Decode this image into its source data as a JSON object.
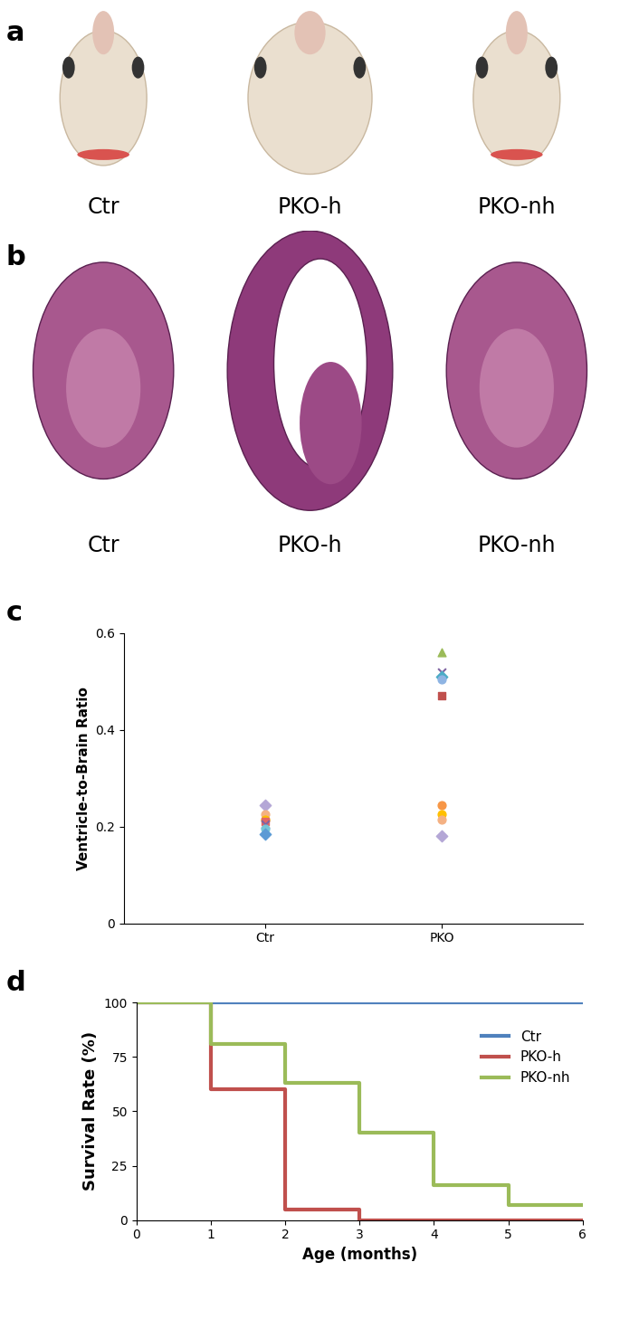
{
  "image_panels": [
    {
      "panel": "a",
      "type": "image",
      "captions": [
        "Ctr",
        "PKO-h",
        "PKO-nh"
      ]
    },
    {
      "panel": "b",
      "type": "image",
      "captions": [
        "Ctr",
        "PKO-h",
        "PKO-nh"
      ]
    }
  ],
  "chart_data": [
    {
      "panel": "c",
      "type": "scatter",
      "categories": [
        "Ctr",
        "PKO"
      ],
      "y_label": "Ventricle-to-Brain Ratio",
      "ylim": [
        0,
        0.6
      ],
      "yticks": [
        0,
        0.2,
        0.4,
        0.6
      ],
      "points": [
        {
          "category": "Ctr",
          "value": 0.245,
          "color": "#b4a7d6",
          "marker": "diamond"
        },
        {
          "category": "Ctr",
          "value": 0.225,
          "color": "#f4b183",
          "marker": "circle"
        },
        {
          "category": "Ctr",
          "value": 0.215,
          "color": "#ffc000",
          "marker": "circle"
        },
        {
          "category": "Ctr",
          "value": 0.21,
          "color": "#e06666",
          "marker": "square"
        },
        {
          "category": "Ctr",
          "value": 0.205,
          "color": "#8064a2",
          "marker": "x"
        },
        {
          "category": "Ctr",
          "value": 0.195,
          "color": "#76c5d6",
          "marker": "circle"
        },
        {
          "category": "Ctr",
          "value": 0.185,
          "color": "#5b9bd5",
          "marker": "diamond"
        },
        {
          "category": "PKO",
          "value": 0.56,
          "color": "#9bbb59",
          "marker": "triangle"
        },
        {
          "category": "PKO",
          "value": 0.52,
          "color": "#8064a2",
          "marker": "x"
        },
        {
          "category": "PKO",
          "value": 0.51,
          "color": "#4bacc6",
          "marker": "diamond"
        },
        {
          "category": "PKO",
          "value": 0.505,
          "color": "#8eb4e3",
          "marker": "circle"
        },
        {
          "category": "PKO",
          "value": 0.47,
          "color": "#c0504d",
          "marker": "square"
        },
        {
          "category": "PKO",
          "value": 0.245,
          "color": "#f79646",
          "marker": "circle"
        },
        {
          "category": "PKO",
          "value": 0.225,
          "color": "#ffc000",
          "marker": "circle"
        },
        {
          "category": "PKO",
          "value": 0.215,
          "color": "#f4b183",
          "marker": "circle"
        },
        {
          "category": "PKO",
          "value": 0.18,
          "color": "#b4a7d6",
          "marker": "diamond"
        }
      ]
    },
    {
      "panel": "d",
      "type": "line",
      "line_style": "steps",
      "x_label": "Age (months)",
      "y_label": "Survival Rate (%)",
      "x": [
        0,
        1,
        2,
        3,
        4,
        5,
        6
      ],
      "xlim": [
        0,
        6
      ],
      "xticks": [
        0,
        1,
        2,
        3,
        4,
        5,
        6
      ],
      "ylim": [
        0,
        100
      ],
      "yticks": [
        0,
        25,
        50,
        75,
        100
      ],
      "legend": "upper right",
      "series": [
        {
          "name": "Ctr",
          "color": "#4f81bd",
          "values": [
            100,
            100,
            100,
            100,
            100,
            100,
            100
          ]
        },
        {
          "name": "PKO-h",
          "color": "#c0504d",
          "values": [
            100,
            60,
            5,
            0,
            0,
            0,
            0
          ]
        },
        {
          "name": "PKO-nh",
          "color": "#9bbb59",
          "values": [
            100,
            81,
            63,
            40,
            16,
            7,
            7
          ]
        }
      ]
    }
  ]
}
